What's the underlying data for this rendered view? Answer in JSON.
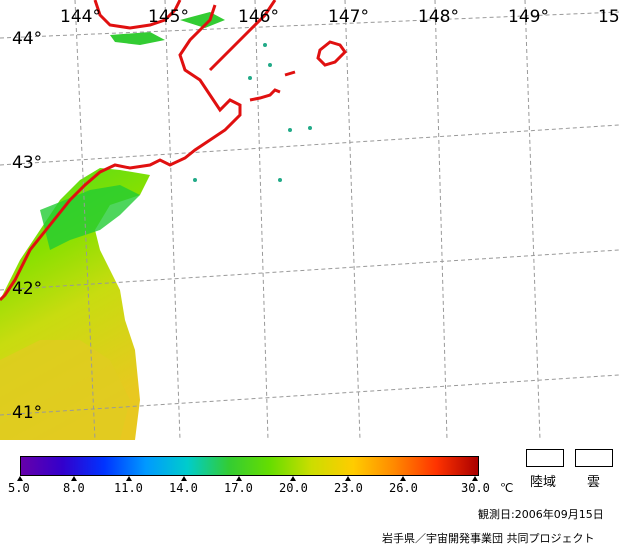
{
  "map": {
    "lon_labels": [
      "144°",
      "145°",
      "146°",
      "147°",
      "148°",
      "149°",
      "15"
    ],
    "lat_labels": [
      "44°",
      "43°",
      "42°",
      "41°"
    ]
  },
  "colorbar": {
    "ticks": [
      "5.0",
      "8.0",
      "11.0",
      "14.0",
      "17.0",
      "20.0",
      "23.0",
      "26.0",
      "30.0"
    ],
    "unit": "℃",
    "colors": [
      "#6600aa",
      "#3300cc",
      "#0033ff",
      "#0099ff",
      "#00cccc",
      "#33cc33",
      "#66dd00",
      "#ccdd00",
      "#ffcc00",
      "#ff8800",
      "#ff3300",
      "#aa0000"
    ]
  },
  "legend": {
    "land_label": "陸域",
    "cloud_label": "雲"
  },
  "footer": {
    "observed": "観測日:2006年09月15日",
    "credit": "岩手県／宇宙開発事業団 共同プロジェクト"
  }
}
